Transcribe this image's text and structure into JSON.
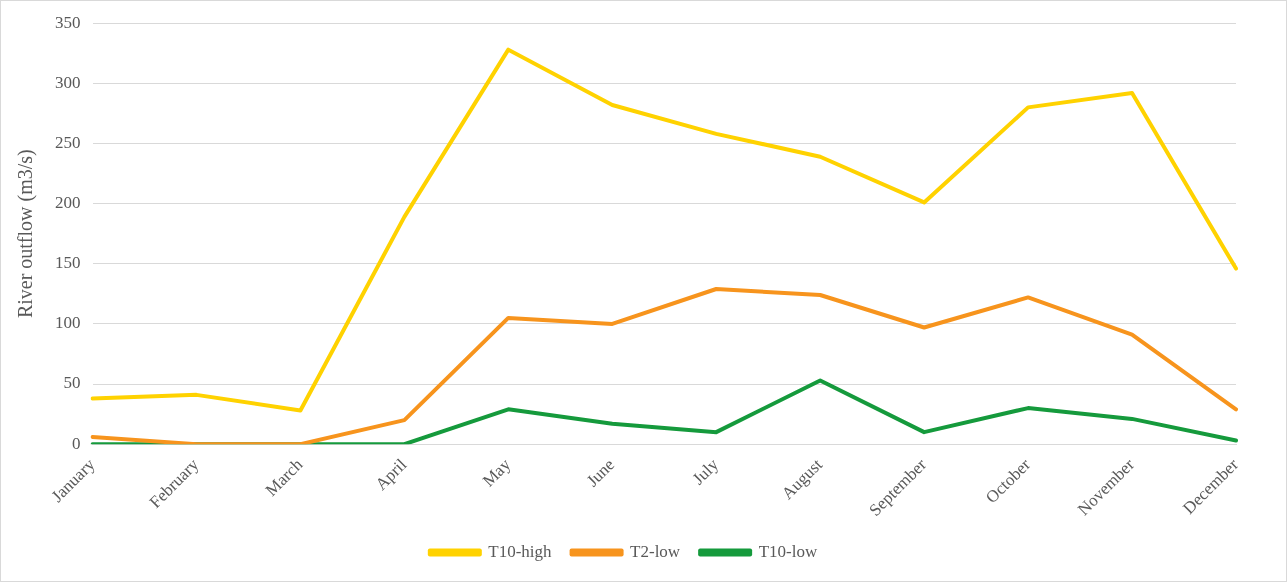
{
  "chart_data": {
    "type": "line",
    "ylabel": "River outflow (m3/s)",
    "categories": [
      "January",
      "February",
      "March",
      "April",
      "May",
      "June",
      "July",
      "August",
      "September",
      "October",
      "November",
      "December"
    ],
    "series": [
      {
        "name": "T10-high",
        "color": "#ffd200",
        "values": [
          38,
          41,
          28,
          189,
          328,
          282,
          258,
          239,
          201,
          280,
          292,
          146
        ]
      },
      {
        "name": "T2-low",
        "color": "#f7941d",
        "values": [
          6,
          0,
          0,
          20,
          105,
          100,
          129,
          124,
          97,
          122,
          91,
          29
        ]
      },
      {
        "name": "T10-low",
        "color": "#159a3c",
        "values": [
          0,
          0,
          0,
          0,
          29,
          17,
          10,
          53,
          10,
          30,
          21,
          3
        ]
      }
    ],
    "ylim": [
      0,
      350
    ],
    "yticks": [
      0,
      50,
      100,
      150,
      200,
      250,
      300,
      350
    ],
    "grid": "y",
    "legend": "bottom",
    "marker": "none",
    "line_style": "solid"
  }
}
